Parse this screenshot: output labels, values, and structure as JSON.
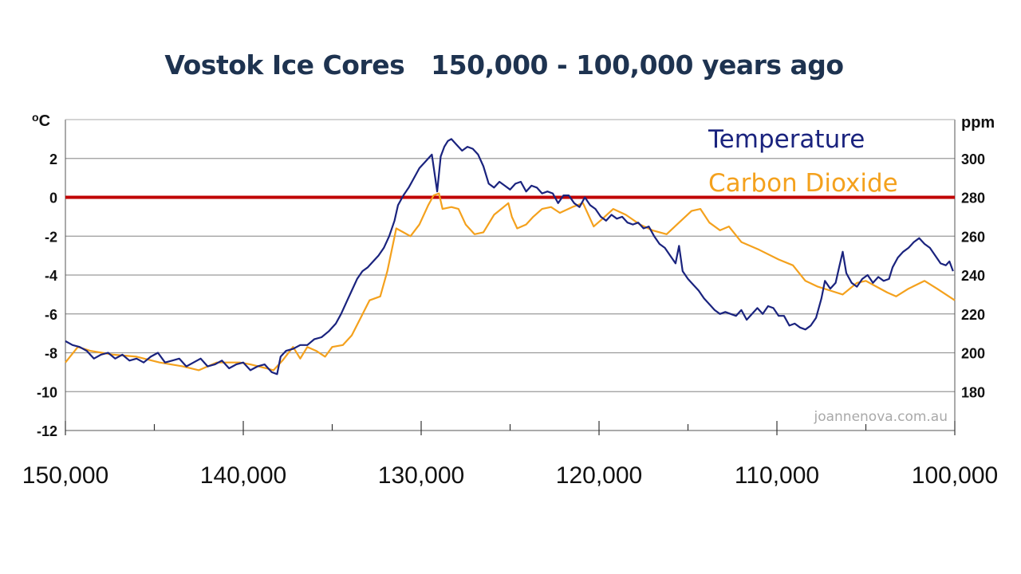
{
  "chart_data": {
    "type": "line",
    "title": "Vostok Ice Cores   150,000 - 100,000 years ago",
    "y_left_unit": "oC",
    "y_right_unit": "ppm",
    "credit": "joannenova.com.au",
    "x_range": [
      150000,
      100000
    ],
    "x_ticks": [
      "150,000",
      "140,000",
      "130,000",
      "120,000",
      "110,000",
      "100,000"
    ],
    "y_left_range": [
      -12,
      4
    ],
    "y_left_ticks": [
      "2",
      "0",
      "-2",
      "-4",
      "-6",
      "-8",
      "-10",
      "-12"
    ],
    "y_right_range": [
      160,
      320
    ],
    "y_right_ticks": [
      "300",
      "280",
      "260",
      "240",
      "220",
      "200",
      "180"
    ],
    "reference_line": {
      "y": 0,
      "color": "#c00000"
    },
    "series": [
      {
        "name": "Temperature",
        "axis": "left",
        "color": "#1a237e",
        "points": [
          [
            150000,
            -7.4
          ],
          [
            149600,
            -7.6
          ],
          [
            149200,
            -7.7
          ],
          [
            148800,
            -7.9
          ],
          [
            148400,
            -8.3
          ],
          [
            148000,
            -8.1
          ],
          [
            147600,
            -8.0
          ],
          [
            147200,
            -8.3
          ],
          [
            146800,
            -8.1
          ],
          [
            146400,
            -8.4
          ],
          [
            146000,
            -8.3
          ],
          [
            145600,
            -8.5
          ],
          [
            145200,
            -8.2
          ],
          [
            144800,
            -8.0
          ],
          [
            144400,
            -8.5
          ],
          [
            144000,
            -8.4
          ],
          [
            143600,
            -8.3
          ],
          [
            143200,
            -8.7
          ],
          [
            142800,
            -8.5
          ],
          [
            142400,
            -8.3
          ],
          [
            142000,
            -8.7
          ],
          [
            141600,
            -8.6
          ],
          [
            141200,
            -8.4
          ],
          [
            140800,
            -8.8
          ],
          [
            140400,
            -8.6
          ],
          [
            140000,
            -8.5
          ],
          [
            139600,
            -8.9
          ],
          [
            139200,
            -8.7
          ],
          [
            138800,
            -8.6
          ],
          [
            138400,
            -9.0
          ],
          [
            138100,
            -9.1
          ],
          [
            137900,
            -8.2
          ],
          [
            137600,
            -7.9
          ],
          [
            137200,
            -7.8
          ],
          [
            136800,
            -7.6
          ],
          [
            136400,
            -7.6
          ],
          [
            136000,
            -7.3
          ],
          [
            135600,
            -7.2
          ],
          [
            135200,
            -6.9
          ],
          [
            134800,
            -6.5
          ],
          [
            134500,
            -6.0
          ],
          [
            134200,
            -5.4
          ],
          [
            133900,
            -4.8
          ],
          [
            133600,
            -4.2
          ],
          [
            133300,
            -3.8
          ],
          [
            133000,
            -3.6
          ],
          [
            132700,
            -3.3
          ],
          [
            132400,
            -3.0
          ],
          [
            132100,
            -2.6
          ],
          [
            131800,
            -2.0
          ],
          [
            131500,
            -1.2
          ],
          [
            131300,
            -0.4
          ],
          [
            131000,
            0.1
          ],
          [
            130700,
            0.5
          ],
          [
            130400,
            1.0
          ],
          [
            130100,
            1.5
          ],
          [
            129800,
            1.8
          ],
          [
            129600,
            2.0
          ],
          [
            129400,
            2.2
          ],
          [
            129100,
            0.3
          ],
          [
            128900,
            2.1
          ],
          [
            128700,
            2.6
          ],
          [
            128500,
            2.9
          ],
          [
            128300,
            3.0
          ],
          [
            128000,
            2.7
          ],
          [
            127700,
            2.4
          ],
          [
            127400,
            2.6
          ],
          [
            127100,
            2.5
          ],
          [
            126800,
            2.2
          ],
          [
            126500,
            1.6
          ],
          [
            126200,
            0.7
          ],
          [
            125900,
            0.5
          ],
          [
            125600,
            0.8
          ],
          [
            125300,
            0.6
          ],
          [
            125000,
            0.4
          ],
          [
            124700,
            0.7
          ],
          [
            124400,
            0.8
          ],
          [
            124100,
            0.3
          ],
          [
            123800,
            0.6
          ],
          [
            123500,
            0.5
          ],
          [
            123200,
            0.2
          ],
          [
            122900,
            0.3
          ],
          [
            122600,
            0.2
          ],
          [
            122300,
            -0.3
          ],
          [
            122000,
            0.1
          ],
          [
            121700,
            0.1
          ],
          [
            121400,
            -0.3
          ],
          [
            121100,
            -0.5
          ],
          [
            120800,
            0.0
          ],
          [
            120500,
            -0.4
          ],
          [
            120200,
            -0.6
          ],
          [
            119900,
            -1.0
          ],
          [
            119600,
            -1.2
          ],
          [
            119300,
            -0.9
          ],
          [
            119000,
            -1.1
          ],
          [
            118700,
            -1.0
          ],
          [
            118400,
            -1.3
          ],
          [
            118100,
            -1.4
          ],
          [
            117800,
            -1.3
          ],
          [
            117500,
            -1.6
          ],
          [
            117200,
            -1.5
          ],
          [
            116900,
            -2.0
          ],
          [
            116600,
            -2.4
          ],
          [
            116300,
            -2.6
          ],
          [
            116000,
            -3.0
          ],
          [
            115700,
            -3.4
          ],
          [
            115500,
            -2.5
          ],
          [
            115300,
            -3.8
          ],
          [
            115000,
            -4.2
          ],
          [
            114700,
            -4.5
          ],
          [
            114400,
            -4.8
          ],
          [
            114100,
            -5.2
          ],
          [
            113800,
            -5.5
          ],
          [
            113500,
            -5.8
          ],
          [
            113200,
            -6.0
          ],
          [
            112900,
            -5.9
          ],
          [
            112600,
            -6.0
          ],
          [
            112300,
            -6.1
          ],
          [
            112000,
            -5.8
          ],
          [
            111700,
            -6.3
          ],
          [
            111400,
            -6.0
          ],
          [
            111100,
            -5.7
          ],
          [
            110800,
            -6.0
          ],
          [
            110500,
            -5.6
          ],
          [
            110200,
            -5.7
          ],
          [
            109900,
            -6.1
          ],
          [
            109600,
            -6.1
          ],
          [
            109300,
            -6.6
          ],
          [
            109000,
            -6.5
          ],
          [
            108700,
            -6.7
          ],
          [
            108400,
            -6.8
          ],
          [
            108100,
            -6.6
          ],
          [
            107800,
            -6.2
          ],
          [
            107500,
            -5.2
          ],
          [
            107300,
            -4.3
          ],
          [
            107000,
            -4.7
          ],
          [
            106700,
            -4.4
          ],
          [
            106500,
            -3.6
          ],
          [
            106300,
            -2.8
          ],
          [
            106100,
            -3.9
          ],
          [
            105800,
            -4.4
          ],
          [
            105500,
            -4.6
          ],
          [
            105200,
            -4.2
          ],
          [
            104900,
            -4.0
          ],
          [
            104600,
            -4.4
          ],
          [
            104300,
            -4.1
          ],
          [
            104000,
            -4.3
          ],
          [
            103700,
            -4.2
          ],
          [
            103500,
            -3.6
          ],
          [
            103200,
            -3.1
          ],
          [
            102900,
            -2.8
          ],
          [
            102600,
            -2.6
          ],
          [
            102300,
            -2.3
          ],
          [
            102000,
            -2.1
          ],
          [
            101700,
            -2.4
          ],
          [
            101400,
            -2.6
          ],
          [
            101100,
            -3.0
          ],
          [
            100800,
            -3.4
          ],
          [
            100500,
            -3.5
          ],
          [
            100300,
            -3.3
          ],
          [
            100100,
            -3.8
          ]
        ]
      },
      {
        "name": "Carbon Dioxide",
        "axis": "right",
        "color": "#f4a11d",
        "points": [
          [
            150000,
            195
          ],
          [
            149300,
            203
          ],
          [
            148600,
            201
          ],
          [
            147300,
            199
          ],
          [
            146000,
            198
          ],
          [
            144700,
            195
          ],
          [
            143400,
            193
          ],
          [
            142500,
            191
          ],
          [
            141500,
            195
          ],
          [
            140200,
            195
          ],
          [
            139600,
            194
          ],
          [
            138700,
            192
          ],
          [
            138300,
            191
          ],
          [
            137800,
            196
          ],
          [
            137200,
            203
          ],
          [
            136800,
            197
          ],
          [
            136400,
            203
          ],
          [
            135900,
            201
          ],
          [
            135400,
            198
          ],
          [
            135000,
            203
          ],
          [
            134400,
            204
          ],
          [
            133900,
            209
          ],
          [
            133400,
            218
          ],
          [
            132900,
            227
          ],
          [
            132300,
            229
          ],
          [
            131900,
            242
          ],
          [
            131400,
            264
          ],
          [
            131000,
            262
          ],
          [
            130600,
            260
          ],
          [
            130100,
            266
          ],
          [
            129600,
            276
          ],
          [
            129300,
            281
          ],
          [
            129000,
            282
          ],
          [
            128800,
            274
          ],
          [
            128300,
            275
          ],
          [
            127900,
            274
          ],
          [
            127500,
            266
          ],
          [
            127000,
            261
          ],
          [
            126500,
            262
          ],
          [
            125900,
            271
          ],
          [
            125500,
            274
          ],
          [
            125100,
            277
          ],
          [
            124900,
            270
          ],
          [
            124600,
            264
          ],
          [
            124100,
            266
          ],
          [
            123700,
            270
          ],
          [
            123200,
            274
          ],
          [
            122700,
            275
          ],
          [
            122200,
            272
          ],
          [
            121500,
            275
          ],
          [
            120900,
            277
          ],
          [
            120300,
            265
          ],
          [
            119800,
            269
          ],
          [
            119200,
            274
          ],
          [
            118500,
            271
          ],
          [
            117700,
            266
          ],
          [
            117000,
            263
          ],
          [
            116200,
            261
          ],
          [
            115500,
            267
          ],
          [
            114800,
            273
          ],
          [
            114300,
            274
          ],
          [
            113800,
            267
          ],
          [
            113200,
            263
          ],
          [
            112700,
            265
          ],
          [
            112000,
            257
          ],
          [
            111000,
            253
          ],
          [
            109900,
            248
          ],
          [
            109100,
            245
          ],
          [
            108400,
            237
          ],
          [
            107700,
            234
          ],
          [
            107000,
            232
          ],
          [
            106300,
            230
          ],
          [
            105500,
            236
          ],
          [
            105000,
            237
          ],
          [
            104400,
            234
          ],
          [
            103800,
            231
          ],
          [
            103300,
            229
          ],
          [
            102600,
            233
          ],
          [
            101700,
            237
          ],
          [
            101000,
            233
          ],
          [
            100000,
            227
          ]
        ]
      }
    ]
  }
}
